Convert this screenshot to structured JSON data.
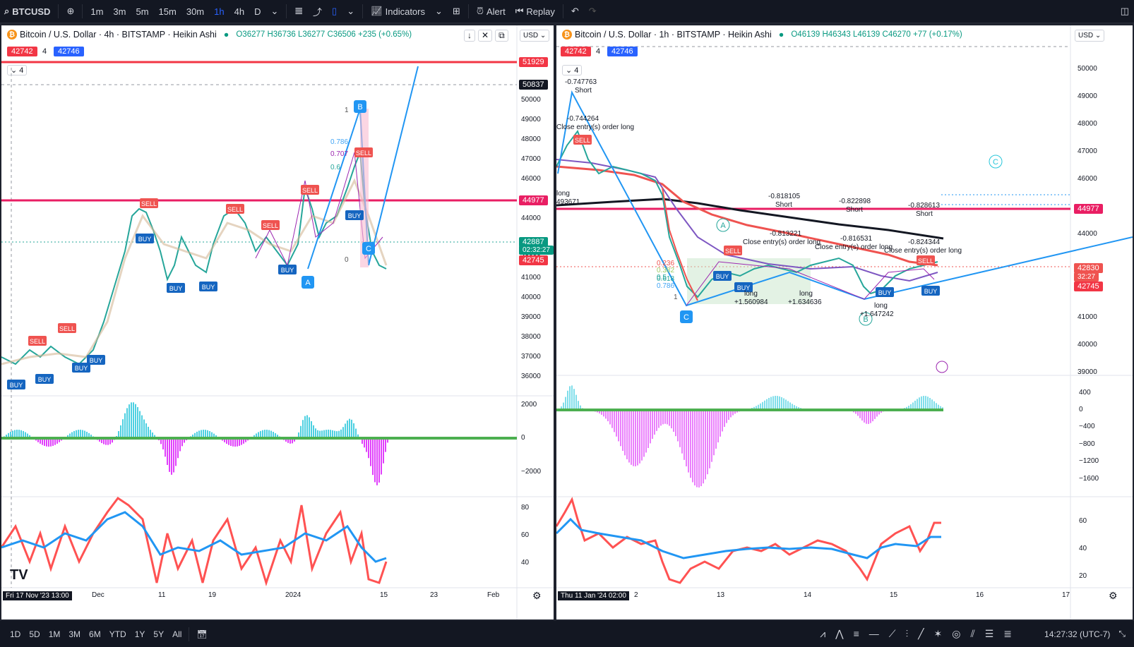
{
  "toolbar": {
    "symbol": "BTCUSD",
    "intervals": [
      "1m",
      "3m",
      "5m",
      "15m",
      "30m",
      "1h",
      "4h",
      "D"
    ],
    "active_interval": "1h",
    "indicators_label": "Indicators",
    "alert_label": "Alert",
    "replay_label": "Replay"
  },
  "left_chart": {
    "title": "Bitcoin / U.S. Dollar · 4h · BITSTAMP · Heikin Ashi",
    "ohlc": "O36277 H36736 L36277 C36506 +235 (+0.65%)",
    "currency": "USD",
    "chip_red": "42742",
    "chip_num": "4",
    "chip_blue": "42746",
    "collapse": "4",
    "price_axis": [
      "50000",
      "49000",
      "48000",
      "47000",
      "46000",
      "45000",
      "44000",
      "43000",
      "42000",
      "41000",
      "40000",
      "39000",
      "38000",
      "37000",
      "36000"
    ],
    "price_tags": {
      "red_line": "51929",
      "cross": "50837",
      "pink_line": "44977",
      "current": "42887",
      "countdown": "02:32:27",
      "red_tag": "42745"
    },
    "osc_axis": [
      "2000",
      "0",
      "−2000"
    ],
    "rsi_axis": [
      "80",
      "60",
      "40"
    ],
    "dates": [
      "Dec",
      "11",
      "19",
      "2024",
      "11",
      "15",
      "23",
      "Feb"
    ],
    "crosshair_date": "Fri 17 Nov '23  13:00",
    "wave_labels": [
      "A",
      "B",
      "C"
    ],
    "fib_labels": [
      "0.786",
      "0.707",
      "0.6",
      "1",
      "0"
    ],
    "brand": "TV"
  },
  "right_chart": {
    "title": "Bitcoin / U.S. Dollar · 1h · BITSTAMP · Heikin Ashi",
    "ohlc": "O46139 H46343 L46139 C46270 +77 (+0.17%)",
    "currency": "USD",
    "chip_red": "42742",
    "chip_num": "4",
    "chip_blue": "42746",
    "collapse": "4",
    "price_axis": [
      "50000",
      "49000",
      "48000",
      "47000",
      "46000",
      "45000",
      "44000",
      "43000",
      "42000",
      "41000",
      "40000",
      "39000"
    ],
    "price_tags": {
      "pink_line": "44977",
      "current": "42830",
      "countdown": "32:27",
      "red_tag": "42745"
    },
    "osc_axis": [
      "400",
      "0",
      "−400",
      "−800",
      "−1200",
      "−1600"
    ],
    "rsi_axis": [
      "60",
      "40",
      "20"
    ],
    "dates": [
      "2",
      "13",
      "14",
      "15",
      "16",
      "17"
    ],
    "crosshair_date": "Thu 11 Jan '24  02:00",
    "annotations": [
      "-0.747763",
      "Short",
      "-0.744264",
      "Close entry(s) order long",
      "long",
      "493671",
      "-0.818105",
      "Short",
      "-0.822898",
      "Short",
      "-0.828613",
      "Short",
      "-0.813221",
      "Close entry(s) order long",
      "-0.816531",
      "Close entry(s) order long",
      "-0.824344",
      "Close entry(s) order long",
      "long",
      "+1.560984",
      "long",
      "+1.634636",
      "long",
      "+1.647242"
    ],
    "wave_labels": [
      "A",
      "B",
      "C",
      "C"
    ],
    "fib_labels": [
      "0.236",
      "0.382",
      "0.5",
      "0.618",
      "0.786",
      "1"
    ]
  },
  "bottombar": {
    "ranges": [
      "1D",
      "5D",
      "1M",
      "3M",
      "6M",
      "YTD",
      "1Y",
      "5Y",
      "All"
    ],
    "time": "14:27:32 (UTC-7)"
  },
  "colors": {
    "bull": "#26a69a",
    "bear": "#ef5350",
    "pink_line": "#e91e63",
    "red_line": "#f23645",
    "blue_line": "#2196f3",
    "rsi_red": "#ff5252",
    "rsi_blue": "#2196f3",
    "purple": "#9c27b0"
  }
}
